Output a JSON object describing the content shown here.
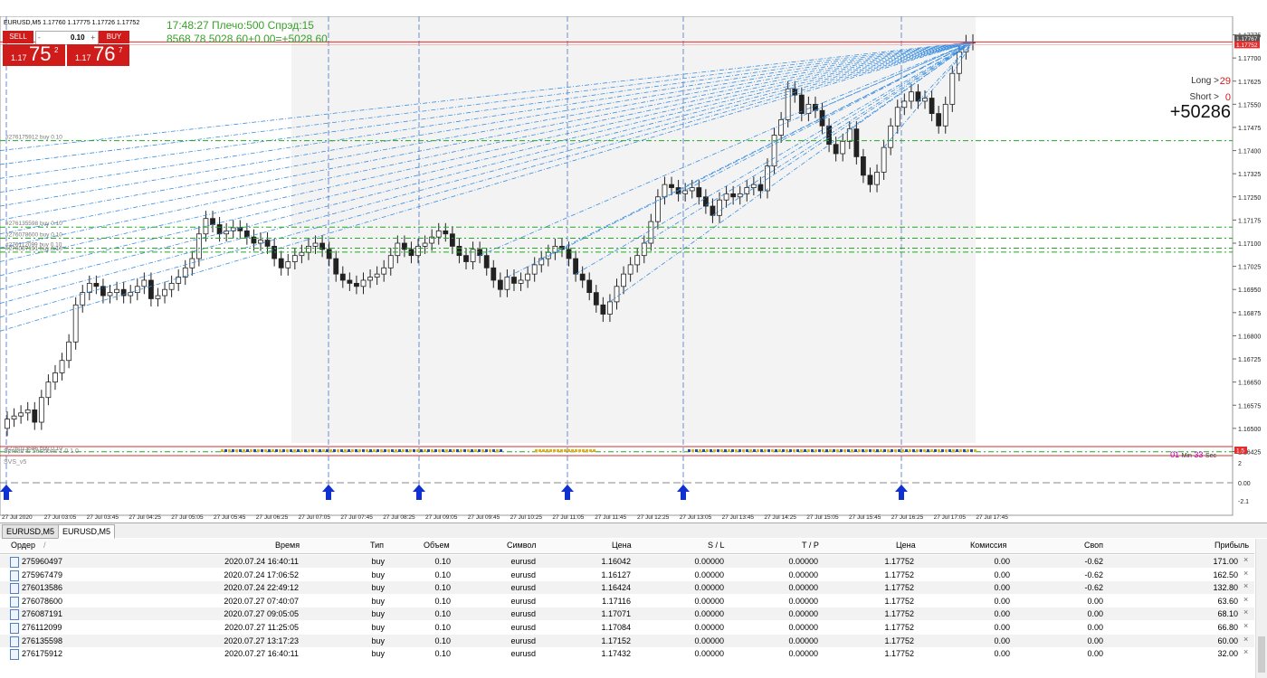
{
  "window": {
    "symbol_info": "EURUSD,M5  1.17760 1.17775 1.17726 1.17752",
    "clock_line": "17:48:27 Плечо:500 Спрэд:15",
    "equity_line": "8568.78   5028.60+0.00=+5028.60"
  },
  "trade_panel": {
    "sell_label": "SELL",
    "buy_label": "BUY",
    "lot": "0.10",
    "minus": "-",
    "plus": "+",
    "bid_prefix": "1.17",
    "bid_big": "75",
    "bid_sup": "2",
    "ask_prefix": "1.17",
    "ask_big": "76",
    "ask_sup": "7"
  },
  "info": {
    "long_label": "Long >",
    "long_value": "29",
    "short_label": "Short >",
    "short_value": "0",
    "profit": "+50286",
    "timer_min": "01",
    "timer_min_unit": "Min",
    "timer_sec": "33",
    "timer_sec_unit": "Sec"
  },
  "indicators": {
    "spread_sessions": "Spread & Sessions 1.0 1.0",
    "svs": "SVS_v5"
  },
  "order_labels": [
    {
      "text": "#276175912 buy 0.10",
      "price": 1.17432
    },
    {
      "text": "#276135598 buy 0.10",
      "price": 1.17152
    },
    {
      "text": "#276078600 buy 0.10",
      "price": 1.17116
    },
    {
      "text": "#276112099 buy 0.10",
      "price": 1.17084
    },
    {
      "text": "#276087191 buy 0.10",
      "price": 1.17071
    },
    {
      "text": "#276013586 buy 0.10",
      "price": 1.16424
    }
  ],
  "price_axis": {
    "ticks": [
      "1.17775",
      "1.17700",
      "1.17625",
      "1.17550",
      "1.17475",
      "1.17400",
      "1.17325",
      "1.17250",
      "1.17175",
      "1.17100",
      "1.17025",
      "1.16950",
      "1.16875",
      "1.16800",
      "1.16725",
      "1.16650",
      "1.16575",
      "1.16500",
      "1.16425"
    ],
    "current_price": "1.17752",
    "current_ask": "1.17767",
    "indicator_ticks": [
      "1.5",
      "2",
      "0.00",
      "-2.1"
    ]
  },
  "time_axis": {
    "ticks": [
      "27 Jul 2020",
      "27 Jul 03:05",
      "27 Jul 03:45",
      "27 Jul 04:25",
      "27 Jul 05:05",
      "27 Jul 05:45",
      "27 Jul 06:25",
      "27 Jul 07:05",
      "27 Jul 07:45",
      "27 Jul 08:25",
      "27 Jul 09:05",
      "27 Jul 09:45",
      "27 Jul 10:25",
      "27 Jul 11:05",
      "27 Jul 11:45",
      "27 Jul 12:25",
      "27 Jul 13:05",
      "27 Jul 13:45",
      "27 Jul 14:25",
      "27 Jul 15:05",
      "27 Jul 15:45",
      "27 Jul 16:25",
      "27 Jul 17:05",
      "27 Jul 17:45"
    ]
  },
  "chart_data": {
    "type": "candlestick",
    "symbol": "EURUSD",
    "timeframe": "M5",
    "close_series": [
      1.1653,
      1.1654,
      1.1655,
      1.1656,
      1.1652,
      1.166,
      1.1665,
      1.1668,
      1.1672,
      1.1678,
      1.169,
      1.1694,
      1.1697,
      1.1696,
      1.1693,
      1.1694,
      1.1695,
      1.1693,
      1.1694,
      1.1696,
      1.1698,
      1.1692,
      1.1693,
      1.1695,
      1.1697,
      1.1699,
      1.1702,
      1.1705,
      1.1713,
      1.1718,
      1.1716,
      1.1713,
      1.1714,
      1.1715,
      1.1714,
      1.1712,
      1.171,
      1.1711,
      1.1709,
      1.1705,
      1.1702,
      1.1704,
      1.1706,
      1.1707,
      1.1709,
      1.171,
      1.1708,
      1.1705,
      1.17,
      1.1698,
      1.1697,
      1.1696,
      1.1698,
      1.1699,
      1.17,
      1.1702,
      1.1706,
      1.171,
      1.1708,
      1.1706,
      1.1709,
      1.171,
      1.1712,
      1.1714,
      1.1713,
      1.1709,
      1.1706,
      1.1704,
      1.1708,
      1.1706,
      1.1702,
      1.1698,
      1.1695,
      1.1699,
      1.1697,
      1.1698,
      1.17,
      1.1703,
      1.1705,
      1.1707,
      1.1709,
      1.1708,
      1.1705,
      1.17,
      1.1698,
      1.1694,
      1.169,
      1.1687,
      1.1691,
      1.1696,
      1.17,
      1.1703,
      1.1706,
      1.171,
      1.1717,
      1.1725,
      1.1729,
      1.1728,
      1.1726,
      1.1727,
      1.1728,
      1.1725,
      1.1722,
      1.1719,
      1.1724,
      1.1726,
      1.1725,
      1.1726,
      1.1728,
      1.1729,
      1.1727,
      1.1735,
      1.1745,
      1.175,
      1.176,
      1.1758,
      1.1752,
      1.1755,
      1.1753,
      1.1748,
      1.1742,
      1.1739,
      1.1743,
      1.1747,
      1.1738,
      1.1732,
      1.1729,
      1.1733,
      1.1741,
      1.1748,
      1.1754,
      1.1756,
      1.1759,
      1.1756,
      1.1757,
      1.1752,
      1.1748,
      1.1755,
      1.1765,
      1.1772,
      1.1775,
      1.17752
    ]
  },
  "tabs": [
    {
      "label": "EURUSD,M5",
      "active": false
    },
    {
      "label": "EURUSD,M5",
      "active": true
    }
  ],
  "table": {
    "headers": [
      "Ордер",
      "/",
      "Время",
      "Тип",
      "Объем",
      "Символ",
      "Цена",
      "S / L",
      "T / P",
      "Цена",
      "Комиссия",
      "Своп",
      "Прибыль"
    ],
    "rows": [
      [
        "275960497",
        "2020.07.24 16:40:11",
        "buy",
        "0.10",
        "eurusd",
        "1.16042",
        "0.00000",
        "0.00000",
        "1.17752",
        "0.00",
        "-0.62",
        "171.00"
      ],
      [
        "275967479",
        "2020.07.24 17:06:52",
        "buy",
        "0.10",
        "eurusd",
        "1.16127",
        "0.00000",
        "0.00000",
        "1.17752",
        "0.00",
        "-0.62",
        "162.50"
      ],
      [
        "276013586",
        "2020.07.24 22:49:12",
        "buy",
        "0.10",
        "eurusd",
        "1.16424",
        "0.00000",
        "0.00000",
        "1.17752",
        "0.00",
        "-0.62",
        "132.80"
      ],
      [
        "276078600",
        "2020.07.27 07:40:07",
        "buy",
        "0.10",
        "eurusd",
        "1.17116",
        "0.00000",
        "0.00000",
        "1.17752",
        "0.00",
        "0.00",
        "63.60"
      ],
      [
        "276087191",
        "2020.07.27 09:05:05",
        "buy",
        "0.10",
        "eurusd",
        "1.17071",
        "0.00000",
        "0.00000",
        "1.17752",
        "0.00",
        "0.00",
        "68.10"
      ],
      [
        "276112099",
        "2020.07.27 11:25:05",
        "buy",
        "0.10",
        "eurusd",
        "1.17084",
        "0.00000",
        "0.00000",
        "1.17752",
        "0.00",
        "0.00",
        "66.80"
      ],
      [
        "276135598",
        "2020.07.27 13:17:23",
        "buy",
        "0.10",
        "eurusd",
        "1.17152",
        "0.00000",
        "0.00000",
        "1.17752",
        "0.00",
        "0.00",
        "60.00"
      ],
      [
        "276175912",
        "2020.07.27 16:40:11",
        "buy",
        "0.10",
        "eurusd",
        "1.17432",
        "0.00000",
        "0.00000",
        "1.17752",
        "0.00",
        "0.00",
        "32.00"
      ]
    ],
    "close_glyph": "×"
  },
  "colors": {
    "grid_shade": "#f3f3f3",
    "session_line": "#6b8fc8",
    "order_line": "#22aa22",
    "projection_line": "#3a8ee0",
    "price_line": "#e03030",
    "arrow": "#1030d0"
  }
}
